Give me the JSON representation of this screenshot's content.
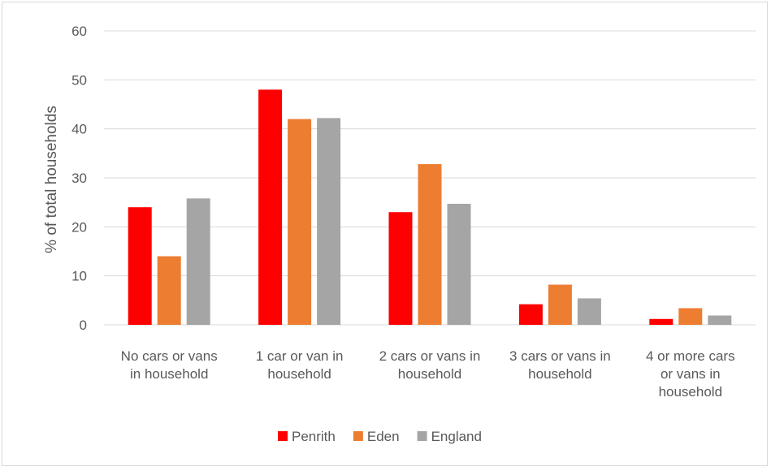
{
  "chart_data": {
    "type": "bar",
    "title": "",
    "xlabel": "",
    "ylabel": "% of total households",
    "ylim": [
      0,
      60
    ],
    "yticks": [
      0,
      10,
      20,
      30,
      40,
      50,
      60
    ],
    "grid": true,
    "legend_position": "bottom",
    "categories": [
      [
        "No cars or vans",
        "in household"
      ],
      [
        "1 car or van in",
        "household"
      ],
      [
        "2 cars or vans in",
        "household"
      ],
      [
        "3 cars or vans in",
        "household"
      ],
      [
        "4 or more cars",
        "or vans in",
        "household"
      ]
    ],
    "series": [
      {
        "name": "Penrith",
        "color": "#ff0000",
        "values": [
          24,
          48,
          23,
          4.2,
          1.2
        ]
      },
      {
        "name": "Eden",
        "color": "#ed7d31",
        "values": [
          14,
          42,
          32.8,
          8.2,
          3.4
        ]
      },
      {
        "name": "England",
        "color": "#a5a5a5",
        "values": [
          25.8,
          42.2,
          24.7,
          5.4,
          1.9
        ]
      }
    ]
  }
}
